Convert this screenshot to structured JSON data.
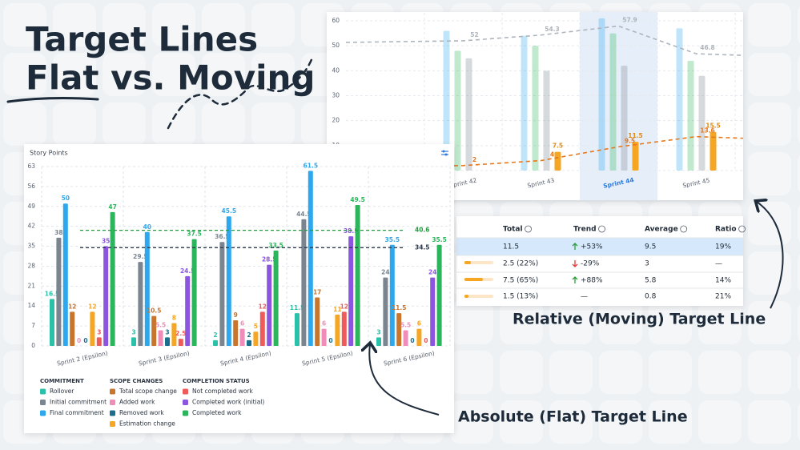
{
  "headline": {
    "line1": "Target Lines",
    "line2": "Flat vs. Moving"
  },
  "callouts": [
    "Relative (Moving) Target Line",
    "Absolute (Flat) Target Line"
  ],
  "chart_data": [
    {
      "type": "bar",
      "y_label": "Story Points",
      "categories": [
        "Sprint 2 (Epsilon)",
        "Sprint 3 (Epsilon)",
        "Sprint 4 (Epsilon)",
        "Sprint 5 (Epsilon)",
        "Sprint 6 (Epsilon)"
      ],
      "ylim": [
        0,
        63
      ],
      "yticks": [
        0,
        7,
        14,
        21,
        28,
        35,
        42,
        49,
        56,
        63
      ],
      "grid": true,
      "target_lines": [
        {
          "value": 40.6,
          "color": "#1f9d3f"
        },
        {
          "value": 34.5,
          "color": "#2f3b4c"
        }
      ],
      "series": [
        {
          "name": "Rollover",
          "group": "COMMITMENT",
          "color": "#2bc0a8",
          "values": [
            16.5,
            3,
            2,
            11.5,
            3
          ]
        },
        {
          "name": "Initial commitment",
          "group": "COMMITMENT",
          "color": "#7a8590",
          "values": [
            38,
            29.5,
            36.5,
            44.5,
            24
          ]
        },
        {
          "name": "Final commitment",
          "group": "COMMITMENT",
          "color": "#2da8ef",
          "values": [
            50,
            40,
            45.5,
            61.5,
            35.5
          ]
        },
        {
          "name": "Total scope change",
          "group": "SCOPE CHANGES",
          "color": "#c8752d",
          "values": [
            12,
            10.5,
            9,
            17,
            11.5
          ]
        },
        {
          "name": "Added work",
          "group": "SCOPE CHANGES",
          "color": "#f08cb8",
          "values": [
            0,
            5.5,
            6,
            6,
            5.5
          ]
        },
        {
          "name": "Removed work",
          "group": "SCOPE CHANGES",
          "color": "#1a6f8e",
          "values": [
            0,
            3,
            2,
            0,
            0
          ]
        },
        {
          "name": "Estimation change",
          "group": "SCOPE CHANGES",
          "color": "#f5a623",
          "values": [
            12,
            8,
            5,
            11,
            6
          ]
        },
        {
          "name": "Not completed work",
          "group": "COMPLETION STATUS",
          "color": "#ef5a5a",
          "values": [
            3,
            2.5,
            12,
            12,
            0
          ]
        },
        {
          "name": "Completed work (initial)",
          "group": "COMPLETION STATUS",
          "color": "#8b55e0",
          "values": [
            35,
            24.5,
            28.5,
            38.5,
            24
          ]
        },
        {
          "name": "Completed work",
          "group": "COMPLETION STATUS",
          "color": "#2db55d",
          "values": [
            47,
            37.5,
            33.5,
            49.5,
            35.5
          ]
        }
      ]
    },
    {
      "type": "bar",
      "categories": [
        "Sprint 42",
        "Sprint 43",
        "Sprint 44",
        "Sprint 45"
      ],
      "highlighted_category": "Sprint 44",
      "ylim": [
        0,
        60
      ],
      "yticks": [
        0,
        10,
        20,
        30,
        40,
        50,
        60
      ],
      "grid": true,
      "series": [
        {
          "kind": "bar",
          "color": "#2da8ef",
          "opacity": 0.3,
          "labels": false,
          "values": [
            56,
            54,
            61,
            57
          ]
        },
        {
          "kind": "bar",
          "color": "#2db55d",
          "opacity": 0.3,
          "labels": false,
          "values": [
            48,
            50,
            55,
            44
          ]
        },
        {
          "kind": "bar",
          "color": "#7a8590",
          "opacity": 0.3,
          "labels": false,
          "values": [
            45,
            40,
            42,
            38
          ]
        },
        {
          "kind": "bar",
          "color": "#f5a623",
          "opacity": 1,
          "labels": true,
          "values": [
            null,
            7.5,
            11.5,
            15.5
          ]
        },
        {
          "kind": "line",
          "color": "#e8771a",
          "dashed": true,
          "labels": true,
          "values": [
            2,
            4,
            9.5,
            13.6
          ]
        },
        {
          "kind": "line",
          "color": "#aeb4bb",
          "dashed": true,
          "labels": true,
          "values": [
            52,
            54.3,
            57.9,
            46.8
          ]
        }
      ]
    }
  ],
  "table": {
    "columns": [
      "Total",
      "Trend",
      "Average",
      "Ratio"
    ],
    "rows": [
      [
        "11.5",
        "+53%",
        "9.5",
        "19%"
      ],
      [
        "2.5 (22%)",
        "-29%",
        "3",
        "—"
      ],
      [
        "7.5 (65%)",
        "+88%",
        "5.8",
        "14%"
      ],
      [
        "1.5 (13%)",
        "—",
        "0.8",
        "21%"
      ]
    ]
  }
}
